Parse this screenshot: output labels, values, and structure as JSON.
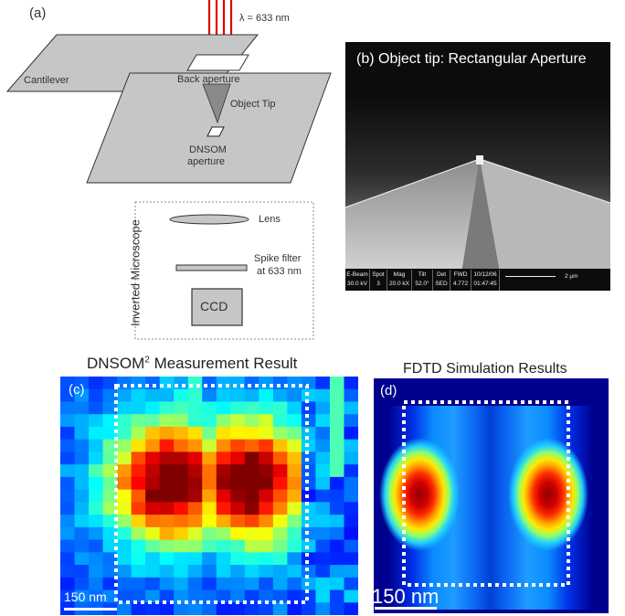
{
  "panel_a": {
    "label": "(a)",
    "wavelength": "λ = 633 nm",
    "cantilever": "Cantilever",
    "back_aperture": "Back aperture",
    "object_tip": "Object Tip",
    "dnsom_line1": "DNSOM",
    "dnsom_line2": "aperture",
    "inverted_microscope": "Inverted Microscope",
    "lens": "Lens",
    "spike_filter_line1": "Spike filter",
    "spike_filter_line2": "at 633 nm",
    "ccd": "CCD"
  },
  "panel_b": {
    "title": "(b) Object tip: Rectangular Aperture",
    "sem_headers": [
      "E-Beam",
      "Spot",
      "Mag",
      "Tilt",
      "Det",
      "FWD",
      "10/12/06"
    ],
    "sem_values": [
      "30.0 kV",
      "3",
      "20.0 kX",
      "52.0°",
      "SED",
      "4.772",
      "01:47:45"
    ],
    "scale": "2 µm"
  },
  "panel_c": {
    "title_main": "DNSOM",
    "title_sup": "2",
    "title_rest": " Measurement Result",
    "label": "(c)",
    "scale": "150 nm"
  },
  "panel_d": {
    "title": "FDTD Simulation Results",
    "label": "(d)",
    "scale": "150 nm"
  },
  "colors": {
    "jet_dark_blue": "#00008f",
    "jet_blue": "#0040ff",
    "jet_red": "#e00000",
    "sem_bg": "#0c0c0c"
  }
}
